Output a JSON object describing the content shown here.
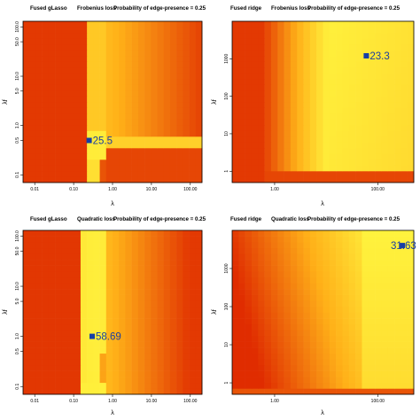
{
  "chart_data": [
    {
      "type": "heatmap",
      "title_parts": [
        "Fused gLasso",
        "Frobenius loss",
        "Probability of edge-presence = 0.25"
      ],
      "xlabel": "λ",
      "ylabel": "λf",
      "x_ticks": [
        "0.01",
        "0.10",
        "1.00",
        "10.00",
        "100.00"
      ],
      "y_ticks": [
        "0.1",
        "0.5",
        "1.0",
        "5.0",
        "10.0",
        "50.0",
        "100.0"
      ],
      "optimum": {
        "lambda": 0.25,
        "lambda_f": 0.5,
        "label": "25.5"
      },
      "colors": {
        "low": "#ffff44",
        "high": "#e02c00",
        "marker": "#163ea6"
      },
      "pattern": "glasso_frob"
    },
    {
      "type": "heatmap",
      "title_parts": [
        "Fused ridge",
        "Frobenius loss",
        "Probability of edge-presence = 0.25"
      ],
      "xlabel": "λ",
      "ylabel": "λf",
      "x_ticks": [
        "1.00",
        "100.00"
      ],
      "y_ticks": [
        "1",
        "10",
        "100",
        "1000"
      ],
      "optimum": {
        "lambda": 60,
        "lambda_f": 1200,
        "label": "23.3"
      },
      "colors": {
        "low": "#ffff44",
        "high": "#e02c00",
        "marker": "#163ea6"
      },
      "pattern": "ridge_frob"
    },
    {
      "type": "heatmap",
      "title_parts": [
        "Fused gLasso",
        "Quadratic loss",
        "Probability of edge-presence = 0.25"
      ],
      "xlabel": "λ",
      "ylabel": "λf",
      "x_ticks": [
        "0.01",
        "0.10",
        "1.00",
        "10.00",
        "100.00"
      ],
      "y_ticks": [
        "0.1",
        "0.5",
        "1.0",
        "5.0",
        "10.0",
        "50.0",
        "100.0"
      ],
      "optimum": {
        "lambda": 0.3,
        "lambda_f": 1.0,
        "label": "58.69"
      },
      "colors": {
        "low": "#ffff44",
        "high": "#e02c00",
        "marker": "#163ea6"
      },
      "pattern": "glasso_quad"
    },
    {
      "type": "heatmap",
      "title_parts": [
        "Fused ridge",
        "Quadratic loss",
        "Probability of edge-presence = 0.25"
      ],
      "xlabel": "λ",
      "ylabel": "λf",
      "x_ticks": [
        "1.00",
        "100.00"
      ],
      "y_ticks": [
        "1",
        "10",
        "100",
        "1000"
      ],
      "optimum": {
        "lambda": 300,
        "lambda_f": 4000,
        "label": "31.63"
      },
      "colors": {
        "low": "#ffff44",
        "high": "#e02c00",
        "marker": "#163ea6"
      },
      "pattern": "ridge_quad"
    }
  ]
}
